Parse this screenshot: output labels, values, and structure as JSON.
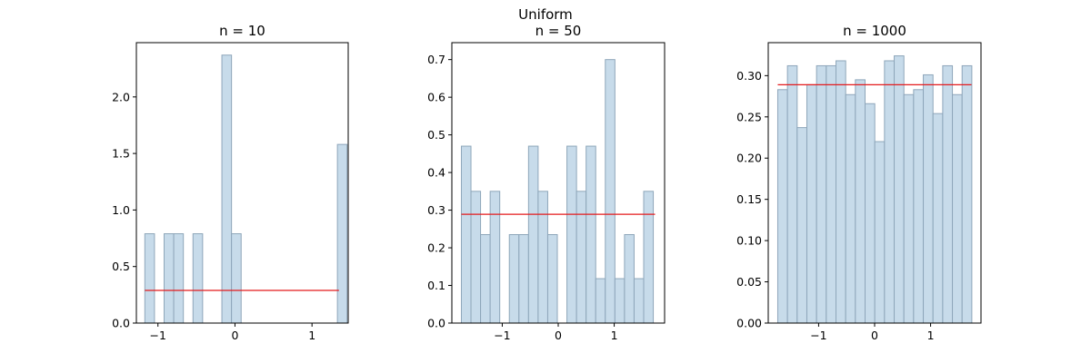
{
  "suptitle": "Uniform",
  "colors": {
    "bar_fill": "#c7dbea",
    "bar_edge": "#8ea6ba",
    "reference_line": "#e41a1c",
    "axes": "#000000"
  },
  "chart_data": [
    {
      "type": "bar",
      "title": "n = 10",
      "xlabel": "",
      "ylabel": "",
      "xlim": [
        -1.28,
        1.47
      ],
      "ylim": [
        0,
        2.48
      ],
      "xticks": [
        -1,
        0,
        1
      ],
      "xtick_labels": [
        "−1",
        "0",
        "1"
      ],
      "yticks": [
        0.0,
        0.5,
        1.0,
        1.5,
        2.0
      ],
      "ytick_labels": [
        "0.0",
        "0.5",
        "1.0",
        "1.5",
        "2.0"
      ],
      "bin_start": -1.17,
      "bin_width": 0.125,
      "values": [
        0.79,
        0,
        0.79,
        0.79,
        0,
        0.79,
        0,
        0,
        2.37,
        0.79,
        0,
        0,
        0,
        0,
        0,
        0,
        0,
        0,
        0,
        0,
        1.58
      ],
      "reference_line": {
        "x": [
          -1.17,
          1.35
        ],
        "y": 0.289
      },
      "grid": false
    },
    {
      "type": "bar",
      "title": "n = 50",
      "xlabel": "",
      "ylabel": "",
      "xlim": [
        -1.9,
        1.9
      ],
      "ylim": [
        0,
        0.745
      ],
      "xticks": [
        -1,
        0,
        1
      ],
      "xtick_labels": [
        "−1",
        "0",
        "1"
      ],
      "yticks": [
        0.0,
        0.1,
        0.2,
        0.3,
        0.4,
        0.5,
        0.6,
        0.7
      ],
      "ytick_labels": [
        "0.0",
        "0.1",
        "0.2",
        "0.3",
        "0.4",
        "0.5",
        "0.6",
        "0.7"
      ],
      "bin_start": -1.73,
      "bin_width": 0.1714,
      "values": [
        0.47,
        0.35,
        0.235,
        0.35,
        0,
        0.235,
        0.235,
        0.47,
        0.35,
        0.235,
        0,
        0.47,
        0.35,
        0.47,
        0.118,
        0.7,
        0.118,
        0.235,
        0.118,
        0.35
      ],
      "reference_line": {
        "x": [
          -1.73,
          1.73
        ],
        "y": 0.289
      },
      "grid": false
    },
    {
      "type": "bar",
      "title": "n = 1000",
      "xlabel": "",
      "ylabel": "",
      "xlim": [
        -1.9,
        1.9
      ],
      "ylim": [
        0,
        0.34
      ],
      "xticks": [
        -1,
        0,
        1
      ],
      "xtick_labels": [
        "−1",
        "0",
        "1"
      ],
      "yticks": [
        0.0,
        0.05,
        0.1,
        0.15,
        0.2,
        0.25,
        0.3
      ],
      "ytick_labels": [
        "0.00",
        "0.05",
        "0.10",
        "0.15",
        "0.20",
        "0.25",
        "0.30"
      ],
      "bin_start": -1.73,
      "bin_width": 0.1733,
      "values": [
        0.283,
        0.312,
        0.237,
        0.289,
        0.312,
        0.312,
        0.318,
        0.277,
        0.295,
        0.266,
        0.22,
        0.318,
        0.324,
        0.277,
        0.283,
        0.301,
        0.254,
        0.312,
        0.277,
        0.312
      ],
      "reference_line": {
        "x": [
          -1.73,
          1.73
        ],
        "y": 0.289
      },
      "grid": false
    }
  ]
}
